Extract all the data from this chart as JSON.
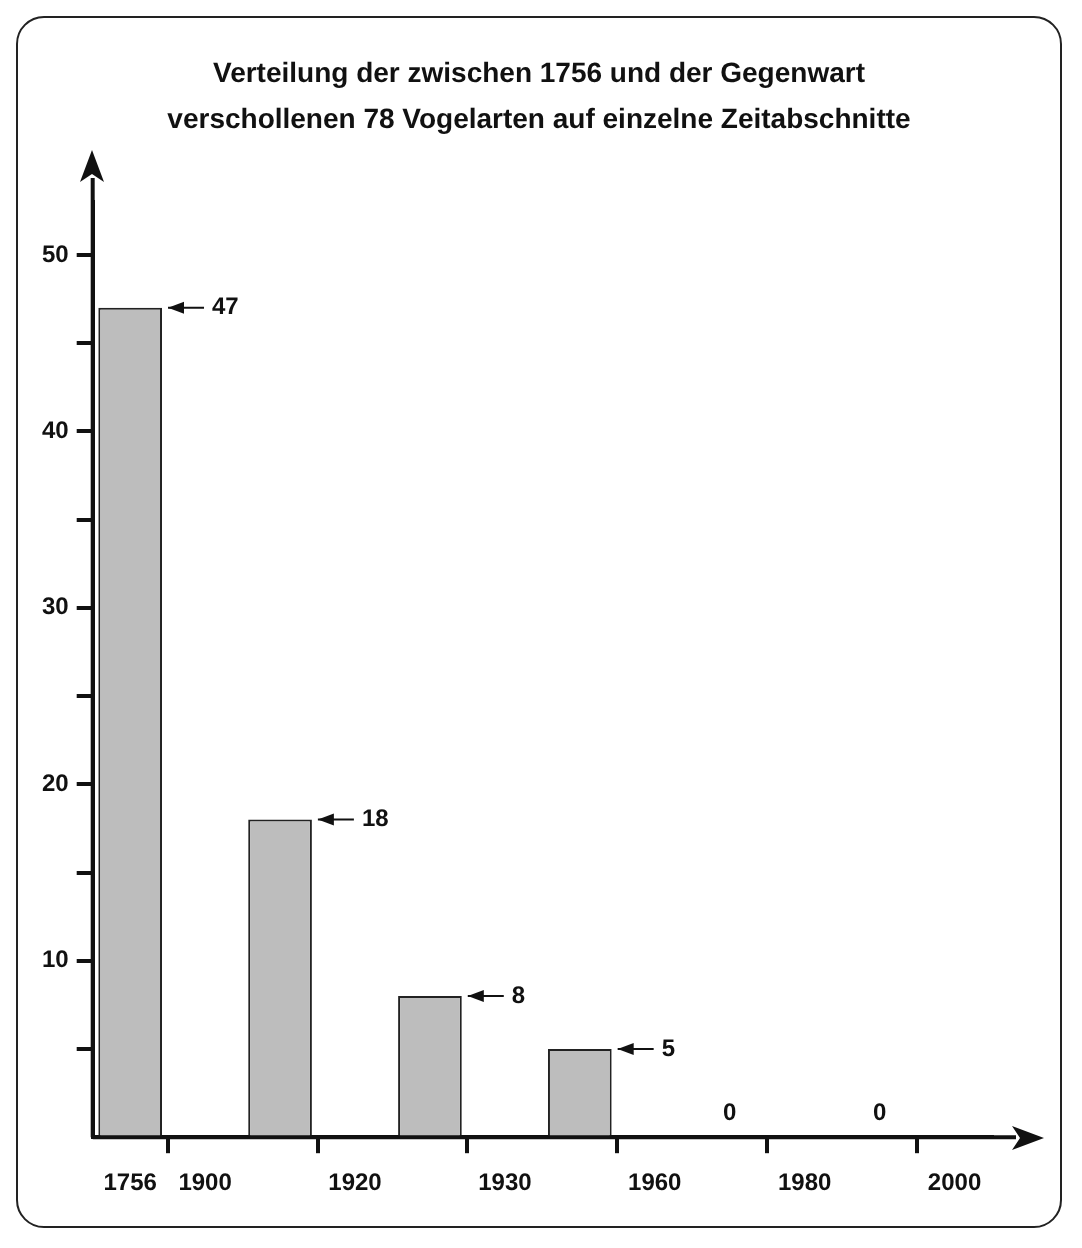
{
  "chart_data": {
    "type": "bar",
    "title": "Verteilung der zwischen 1756 und der Gegenwart verschollenen 78 Vogelarten auf einzelne Zeitabschnitte",
    "categories": [
      "1756",
      "1900",
      null,
      "1920",
      null,
      "1930",
      null,
      "1960",
      null,
      "1980",
      null,
      "2000"
    ],
    "values": [
      47,
      null,
      18,
      null,
      8,
      null,
      5,
      null,
      0,
      null,
      0,
      null
    ],
    "color": "#bdbdbd",
    "data_labels": true,
    "ylim": [
      0,
      53
    ],
    "yticks": [
      {
        "value": 5,
        "label": null
      },
      10,
      {
        "value": 15,
        "label": null
      },
      20,
      {
        "value": 25,
        "label": null
      },
      30,
      {
        "value": 35,
        "label": null
      },
      40,
      {
        "value": 45,
        "label": null
      },
      50
    ],
    "grid": false,
    "legend": false
  }
}
